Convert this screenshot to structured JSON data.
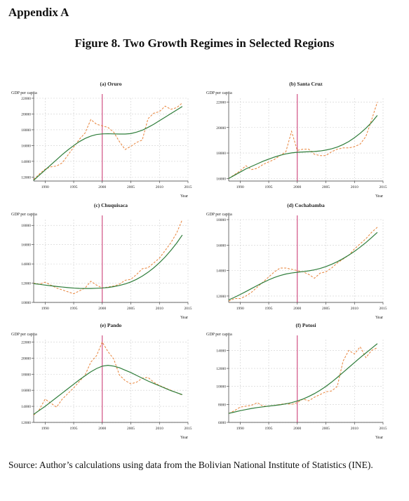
{
  "header": {
    "appendix": "Appendix A",
    "figure_title": "Figure 8. Two Growth Regimes in Selected Regions"
  },
  "footer": {
    "source": "Source: Author’s calculations using data from the Bolivian National Institute of Statistics (INE)."
  },
  "colors": {
    "trend": "#2e7d3a",
    "actual": "#e8833a",
    "break_line": "#c2185b",
    "grid": "#cfcfcf"
  },
  "chart_data": [
    {
      "type": "line",
      "title": "(a) Oruro",
      "ylabel": "GDP per capita",
      "xlabel": "Year",
      "xlim": [
        1988,
        2015
      ],
      "ylim": [
        11500,
        22000
      ],
      "xticks": [
        1990,
        1995,
        2000,
        2005,
        2010,
        2015
      ],
      "yticks": [
        12000,
        14000,
        16000,
        18000,
        20000,
        22000
      ],
      "break_year": 2000,
      "grid": true,
      "x": [
        1988,
        1989,
        1990,
        1991,
        1992,
        1993,
        1994,
        1995,
        1996,
        1997,
        1998,
        1999,
        2000,
        2001,
        2002,
        2003,
        2004,
        2005,
        2006,
        2007,
        2008,
        2009,
        2010,
        2011,
        2012,
        2013,
        2014
      ],
      "series": [
        {
          "style": "dashed",
          "values": [
            11700,
            12400,
            13000,
            13300,
            13400,
            13800,
            14800,
            15800,
            16800,
            17600,
            19300,
            18700,
            18500,
            18300,
            17700,
            16500,
            15500,
            15900,
            16400,
            16700,
            19400,
            20100,
            20300,
            21000,
            20600,
            20800,
            21400
          ]
        },
        {
          "style": "solid",
          "values": [
            11600,
            12250,
            12900,
            13550,
            14200,
            14850,
            15450,
            16000,
            16500,
            16900,
            17200,
            17400,
            17480,
            17500,
            17480,
            17460,
            17460,
            17520,
            17700,
            17950,
            18300,
            18700,
            19150,
            19600,
            20050,
            20500,
            20950
          ]
        }
      ]
    },
    {
      "type": "line",
      "title": "(b) Santa Cruz",
      "ylabel": "GDP per capita",
      "xlabel": "Year",
      "xlim": [
        1988,
        2015
      ],
      "ylim": [
        15800,
        22300
      ],
      "xticks": [
        1990,
        1995,
        2000,
        2005,
        2010,
        2015
      ],
      "yticks": [
        16000,
        18000,
        20000,
        22000
      ],
      "break_year": 2000,
      "grid": true,
      "x": [
        1988,
        1989,
        1990,
        1991,
        1992,
        1993,
        1994,
        1995,
        1996,
        1997,
        1998,
        1999,
        2000,
        2001,
        2002,
        2003,
        2004,
        2005,
        2006,
        2007,
        2008,
        2009,
        2010,
        2011,
        2012,
        2013,
        2014
      ],
      "series": [
        {
          "style": "dashed",
          "values": [
            16000,
            16300,
            16600,
            17000,
            16700,
            16800,
            17100,
            17300,
            17500,
            17800,
            18100,
            19700,
            18200,
            18300,
            18300,
            17900,
            17800,
            17800,
            18100,
            18300,
            18400,
            18400,
            18500,
            18700,
            19300,
            20600,
            22000
          ]
        },
        {
          "style": "solid",
          "values": [
            16000,
            16250,
            16500,
            16750,
            16950,
            17150,
            17350,
            17520,
            17680,
            17820,
            17930,
            18010,
            18060,
            18080,
            18100,
            18120,
            18160,
            18230,
            18330,
            18470,
            18660,
            18900,
            19200,
            19550,
            19950,
            20400,
            20950
          ]
        }
      ]
    },
    {
      "type": "line",
      "title": "(c) Chuquisaca",
      "ylabel": "GDP per capita",
      "xlabel": "Year",
      "xlim": [
        1988,
        2015
      ],
      "ylim": [
        10000,
        18600
      ],
      "xticks": [
        1990,
        1995,
        2000,
        2005,
        2010,
        2015
      ],
      "yticks": [
        10000,
        12000,
        14000,
        16000,
        18000
      ],
      "break_year": 2000,
      "grid": true,
      "x": [
        1988,
        1989,
        1990,
        1991,
        1992,
        1993,
        1994,
        1995,
        1996,
        1997,
        1998,
        1999,
        2000,
        2001,
        2002,
        2003,
        2004,
        2005,
        2006,
        2007,
        2008,
        2009,
        2010,
        2011,
        2012,
        2013,
        2014
      ],
      "series": [
        {
          "style": "dashed",
          "values": [
            12000,
            11900,
            12100,
            11800,
            11500,
            11300,
            11100,
            10900,
            11200,
            11500,
            12200,
            11800,
            11500,
            11600,
            11700,
            11900,
            12300,
            12400,
            12900,
            13500,
            13600,
            14100,
            14600,
            15400,
            16200,
            17200,
            18600
          ]
        },
        {
          "style": "solid",
          "values": [
            11950,
            11880,
            11800,
            11730,
            11660,
            11600,
            11540,
            11490,
            11460,
            11450,
            11450,
            11470,
            11500,
            11550,
            11640,
            11760,
            11920,
            12130,
            12400,
            12730,
            13130,
            13590,
            14120,
            14720,
            15400,
            16150,
            17000
          ]
        }
      ]
    },
    {
      "type": "line",
      "title": "(d) Cochabamba",
      "ylabel": "GDP per capita",
      "xlabel": "Year",
      "xlim": [
        1988,
        2015
      ],
      "ylim": [
        11500,
        18000
      ],
      "xticks": [
        1990,
        1995,
        2000,
        2005,
        2010,
        2015
      ],
      "yticks": [
        12000,
        14000,
        16000,
        18000
      ],
      "break_year": 2000,
      "grid": true,
      "x": [
        1988,
        1989,
        1990,
        1991,
        1992,
        1993,
        1994,
        1995,
        1996,
        1997,
        1998,
        1999,
        2000,
        2001,
        2002,
        2003,
        2004,
        2005,
        2006,
        2007,
        2008,
        2009,
        2010,
        2011,
        2012,
        2013,
        2014
      ],
      "series": [
        {
          "style": "dashed",
          "values": [
            11600,
            11800,
            11800,
            12000,
            12300,
            12700,
            13100,
            13500,
            13900,
            14200,
            14200,
            14100,
            14000,
            13900,
            13700,
            13400,
            13800,
            13900,
            14200,
            14600,
            14900,
            15200,
            15700,
            16100,
            16500,
            17000,
            17400
          ]
        },
        {
          "style": "solid",
          "values": [
            11700,
            11900,
            12120,
            12350,
            12590,
            12830,
            13060,
            13270,
            13460,
            13610,
            13730,
            13810,
            13870,
            13920,
            13980,
            14060,
            14170,
            14310,
            14490,
            14700,
            14940,
            15210,
            15510,
            15840,
            16200,
            16590,
            17000
          ]
        }
      ]
    },
    {
      "type": "line",
      "title": "(e) Pando",
      "ylabel": "GDP per capita",
      "xlabel": "Year",
      "xlim": [
        1988,
        2015
      ],
      "ylim": [
        12000,
        22300
      ],
      "xticks": [
        1990,
        1995,
        2000,
        2005,
        2010,
        2015
      ],
      "yticks": [
        12000,
        14000,
        16000,
        18000,
        20000,
        22000
      ],
      "break_year": 2000,
      "grid": true,
      "x": [
        1988,
        1989,
        1990,
        1991,
        1992,
        1993,
        1994,
        1995,
        1996,
        1997,
        1998,
        1999,
        2000,
        2001,
        2002,
        2003,
        2004,
        2005,
        2006,
        2007,
        2008,
        2009,
        2010,
        2011,
        2012,
        2013,
        2014
      ],
      "series": [
        {
          "style": "dashed",
          "values": [
            12900,
            13600,
            14900,
            14400,
            13900,
            14900,
            15600,
            16300,
            17100,
            17900,
            19500,
            20300,
            22000,
            20800,
            19900,
            17900,
            17200,
            16800,
            17000,
            17500,
            17600,
            17000,
            16600,
            16300,
            16000,
            15700,
            15400
          ]
        },
        {
          "style": "solid",
          "values": [
            13000,
            13500,
            14000,
            14550,
            15100,
            15650,
            16200,
            16750,
            17300,
            17800,
            18300,
            18700,
            19000,
            19100,
            19000,
            18800,
            18500,
            18200,
            17850,
            17500,
            17150,
            16850,
            16550,
            16250,
            15950,
            15700,
            15450
          ]
        }
      ]
    },
    {
      "type": "line",
      "title": "(f) Potosi",
      "ylabel": "GDP per capita",
      "xlabel": "Year",
      "xlim": [
        1988,
        2015
      ],
      "ylim": [
        6000,
        15200
      ],
      "xticks": [
        1990,
        1995,
        2000,
        2005,
        2010,
        2015
      ],
      "yticks": [
        6000,
        8000,
        10000,
        12000,
        14000
      ],
      "break_year": 2000,
      "grid": true,
      "x": [
        1988,
        1989,
        1990,
        1991,
        1992,
        1993,
        1994,
        1995,
        1996,
        1997,
        1998,
        1999,
        2000,
        2001,
        2002,
        2003,
        2004,
        2005,
        2006,
        2007,
        2008,
        2009,
        2010,
        2011,
        2012,
        2013,
        2014
      ],
      "series": [
        {
          "style": "dashed",
          "values": [
            7000,
            7300,
            7700,
            7800,
            7900,
            8200,
            7800,
            7800,
            7900,
            8000,
            8100,
            8000,
            8200,
            8600,
            8400,
            8800,
            9100,
            9400,
            9500,
            10000,
            12800,
            14000,
            13600,
            14400,
            13200,
            14000,
            14300
          ]
        },
        {
          "style": "solid",
          "values": [
            7000,
            7150,
            7300,
            7430,
            7550,
            7650,
            7730,
            7810,
            7880,
            7960,
            8060,
            8200,
            8380,
            8600,
            8880,
            9200,
            9580,
            10000,
            10480,
            11000,
            11550,
            12100,
            12650,
            13200,
            13720,
            14230,
            14750
          ]
        }
      ]
    }
  ]
}
